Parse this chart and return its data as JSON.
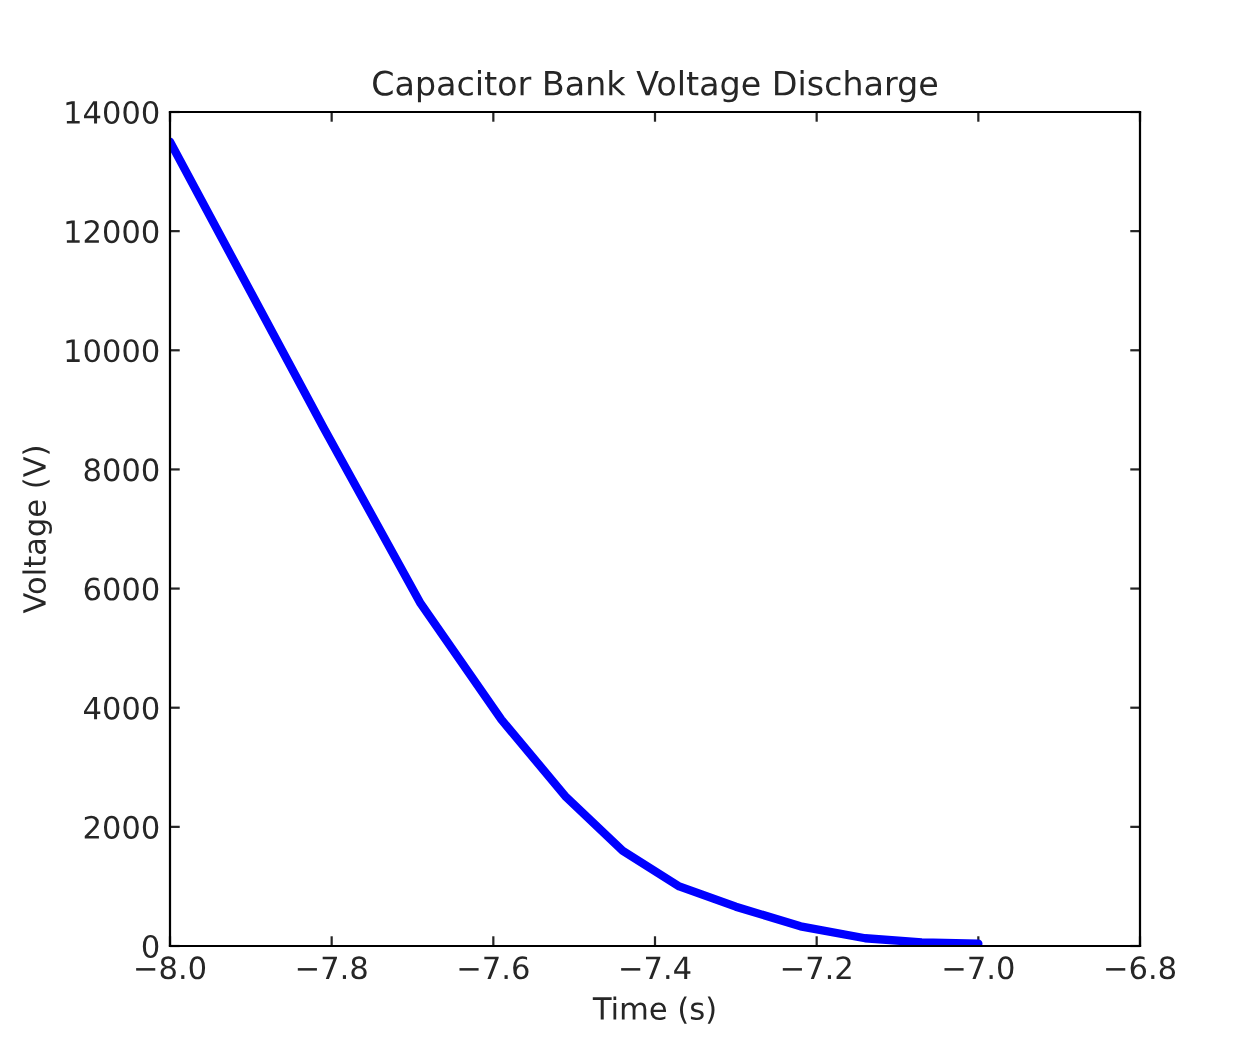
{
  "chart_data": {
    "type": "line",
    "title": "Capacitor Bank Voltage Discharge",
    "xlabel": "Time (s)",
    "ylabel": "Voltage (V)",
    "x": [
      -8.0,
      -7.81,
      -7.69,
      -7.59,
      -7.51,
      -7.44,
      -7.37,
      -7.3,
      -7.22,
      -7.14,
      -7.07,
      -7.0
    ],
    "series": [
      {
        "color": "#0000ff",
        "values": [
          13500,
          8700,
          5750,
          3800,
          2500,
          1600,
          1000,
          660,
          330,
          130,
          60,
          40
        ]
      }
    ],
    "xlim": [
      -8.0,
      -6.8
    ],
    "xticks": [
      {
        "value": -8.0,
        "label": "−8.0"
      },
      {
        "value": -7.8,
        "label": "−7.8"
      },
      {
        "value": -7.6,
        "label": "−7.6"
      },
      {
        "value": -7.4,
        "label": "−7.4"
      },
      {
        "value": -7.2,
        "label": "−7.2"
      },
      {
        "value": -7.0,
        "label": "−7.0"
      },
      {
        "value": -6.8,
        "label": "−6.8"
      }
    ],
    "ylim": [
      0,
      14000
    ],
    "yticks": [
      0,
      2000,
      4000,
      6000,
      8000,
      10000,
      12000,
      14000
    ],
    "grid": false,
    "legend": false,
    "line_style": "solid",
    "marker": "none"
  }
}
